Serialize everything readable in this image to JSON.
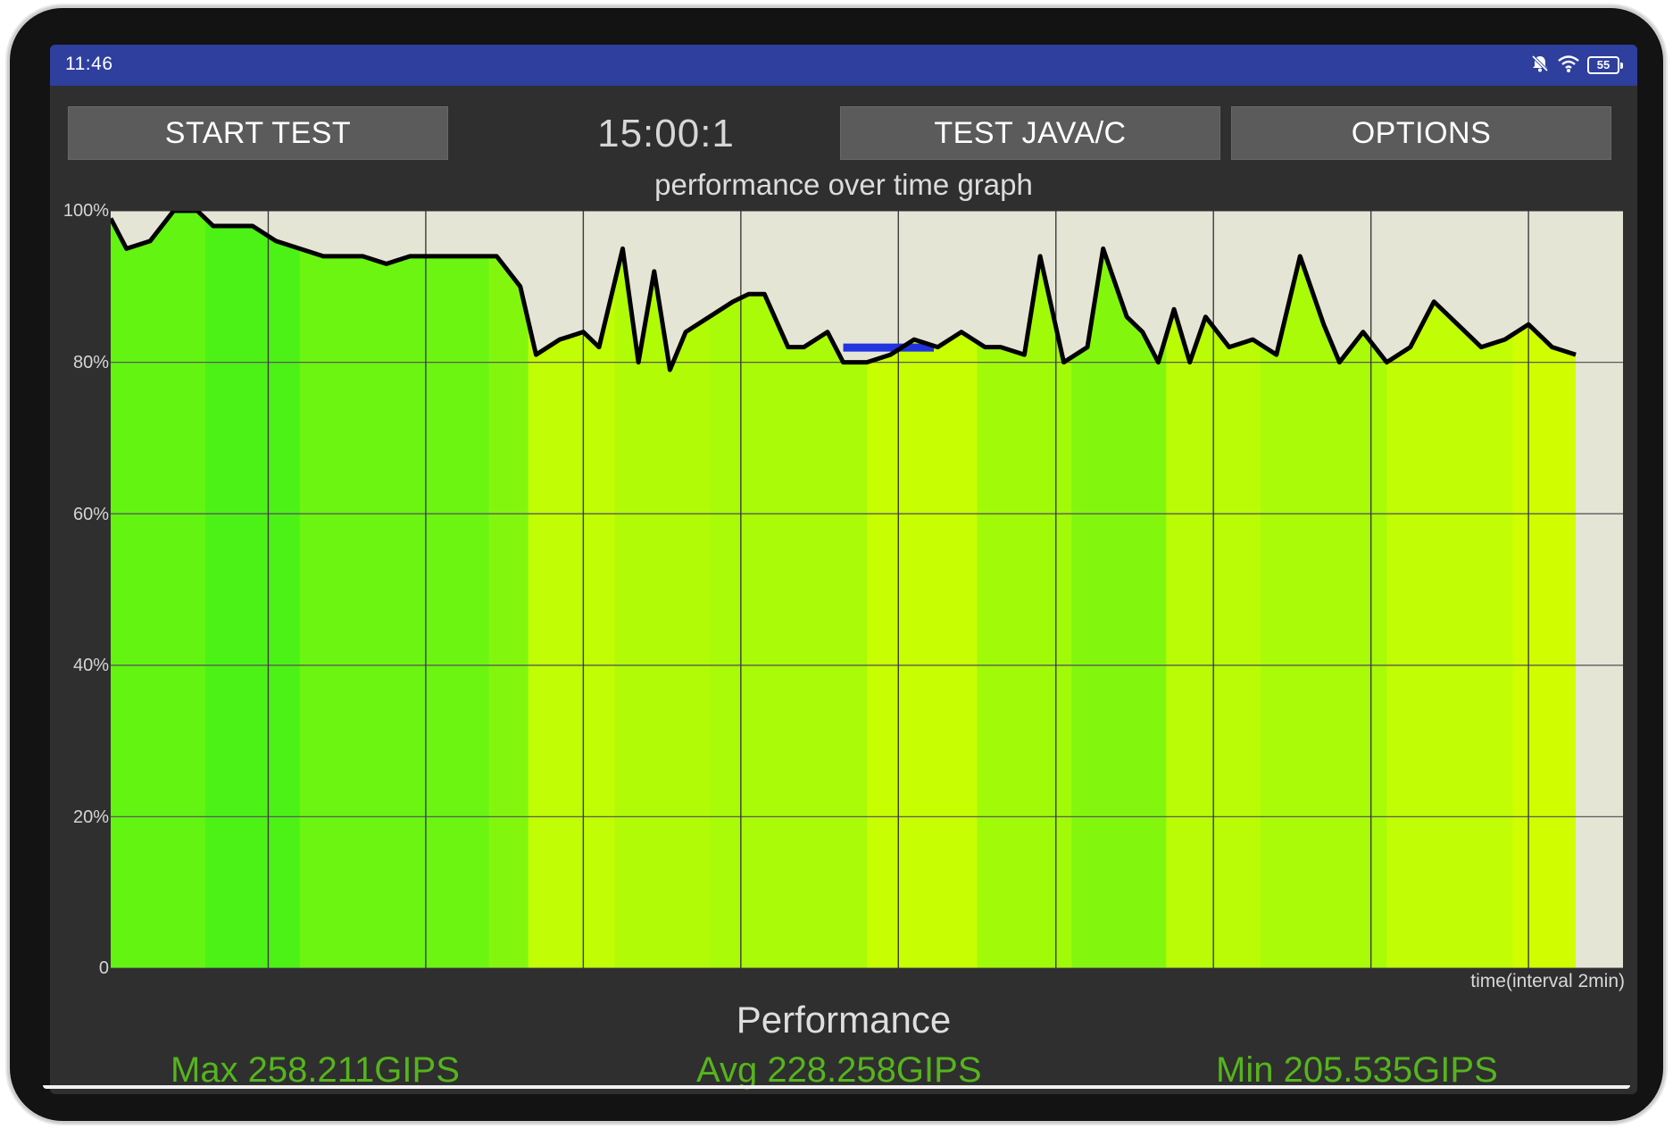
{
  "status_bar": {
    "time": "11:46",
    "battery": "55",
    "icons": [
      "mute-bell-icon",
      "wifi-icon",
      "battery-icon"
    ],
    "color": "#2e3f9e"
  },
  "toolbar": {
    "start_label": "START TEST",
    "timer": "15:00:1",
    "test_label": "TEST JAVA/C",
    "options_label": "OPTIONS"
  },
  "graph": {
    "title": "performance over time graph",
    "xlabel": "time(interval 2min)",
    "ticks": [
      "100%",
      "80%",
      "60%",
      "40%",
      "20%",
      "0"
    ]
  },
  "summary": {
    "title": "Performance",
    "max": "Max 258.211GIPS",
    "avg": "Avg 228.258GIPS",
    "min": "Min 205.535GIPS",
    "color": "#56b41e"
  },
  "chart_data": {
    "type": "area",
    "title": "performance over time graph",
    "xlabel": "time(interval 2min)",
    "ylabel": "",
    "ylim": [
      0,
      100
    ],
    "y_ticks": [
      "0",
      "20%",
      "40%",
      "60%",
      "80%",
      "100%"
    ],
    "x_unit": "minutes",
    "x_grid_interval": 2,
    "x_range": [
      0,
      19.2
    ],
    "grid": true,
    "line_color": "#000000",
    "fill_gradient": [
      "#3cf018",
      "#d8ff00"
    ],
    "background": "#e5e5d6",
    "highlight_segment": {
      "x_start": 9.3,
      "x_end": 10.45,
      "y": 82,
      "color": "#2233e0"
    },
    "series": [
      {
        "x": [
          0.0,
          0.2,
          0.5,
          0.8,
          1.1,
          1.3,
          1.6,
          1.8,
          2.1,
          2.4,
          2.7,
          3.0,
          3.2,
          3.5,
          3.8,
          4.1,
          4.4,
          4.6,
          4.9,
          5.2,
          5.4,
          5.7,
          6.0,
          6.2,
          6.5,
          6.7,
          6.9,
          7.1,
          7.3,
          7.6,
          7.9,
          8.1,
          8.3,
          8.6,
          8.8,
          9.1,
          9.3,
          9.6,
          9.9,
          10.2,
          10.5,
          10.8,
          11.1,
          11.3,
          11.6,
          11.8,
          12.1,
          12.4,
          12.6,
          12.9,
          13.1,
          13.3,
          13.5,
          13.7,
          13.9,
          14.2,
          14.5,
          14.8,
          15.1,
          15.4,
          15.6,
          15.9,
          16.2,
          16.5,
          16.8,
          17.1,
          17.4,
          17.7,
          18.0,
          18.3,
          18.6
        ],
        "y": [
          99,
          95,
          96,
          100,
          100,
          98,
          98,
          98,
          96,
          95,
          94,
          94,
          94,
          93,
          94,
          94,
          94,
          94,
          94,
          90,
          81,
          83,
          84,
          82,
          95,
          80,
          92,
          79,
          84,
          86,
          88,
          89,
          89,
          82,
          82,
          84,
          80,
          80,
          81,
          83,
          82,
          84,
          82,
          82,
          81,
          94,
          80,
          82,
          95,
          86,
          84,
          80,
          87,
          80,
          86,
          82,
          83,
          81,
          94,
          85,
          80,
          84,
          80,
          82,
          88,
          85,
          82,
          83,
          85,
          82,
          81
        ]
      }
    ],
    "color_bands": [
      {
        "x_start": 0,
        "x_end": 1.2,
        "tone": 0.25
      },
      {
        "x_start": 1.2,
        "x_end": 2.4,
        "tone": 0.1
      },
      {
        "x_start": 2.4,
        "x_end": 4.8,
        "tone": 0.3
      },
      {
        "x_start": 4.8,
        "x_end": 5.3,
        "tone": 0.45
      },
      {
        "x_start": 5.3,
        "x_end": 6.4,
        "tone": 0.85
      },
      {
        "x_start": 6.4,
        "x_end": 7.6,
        "tone": 0.75
      },
      {
        "x_start": 7.6,
        "x_end": 9.6,
        "tone": 0.7
      },
      {
        "x_start": 9.6,
        "x_end": 11.0,
        "tone": 0.9
      },
      {
        "x_start": 11.0,
        "x_end": 12.2,
        "tone": 0.65
      },
      {
        "x_start": 12.2,
        "x_end": 13.4,
        "tone": 0.45
      },
      {
        "x_start": 13.4,
        "x_end": 14.6,
        "tone": 0.8
      },
      {
        "x_start": 14.6,
        "x_end": 16.2,
        "tone": 0.7
      },
      {
        "x_start": 16.2,
        "x_end": 17.8,
        "tone": 0.85
      },
      {
        "x_start": 17.8,
        "x_end": 18.6,
        "tone": 0.95
      }
    ]
  }
}
